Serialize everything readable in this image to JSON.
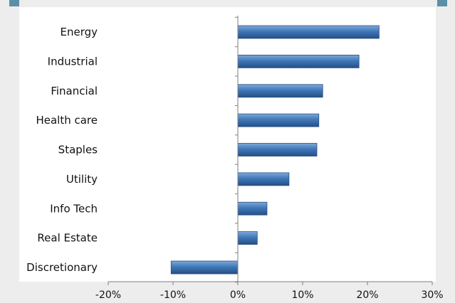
{
  "chart_data": {
    "type": "bar",
    "orientation": "horizontal",
    "categories": [
      "Energy",
      "Industrial",
      "Financial",
      "Health care",
      "Staples",
      "Utility",
      "Info Tech",
      "Real Estate",
      "Discretionary"
    ],
    "values": [
      21.8,
      18.7,
      13.1,
      12.5,
      12.2,
      7.9,
      4.5,
      3.0,
      -10.3
    ],
    "xlim": [
      -20,
      30
    ],
    "xticks": [
      "-20%",
      "-10%",
      "0%",
      "10%",
      "20%",
      "30%"
    ],
    "xtick_values": [
      -20,
      -10,
      0,
      10,
      20,
      30
    ],
    "grid": false,
    "legend": "none",
    "bar_color": "#3f78b8",
    "bar_color_light": "#7fa8d8",
    "bar_color_dark": "#254f85",
    "axis_color": "#7f7f7f"
  },
  "colors": {
    "background": "#ededed",
    "plot_background": "#ffffff",
    "accent": "#5b8fa8"
  }
}
